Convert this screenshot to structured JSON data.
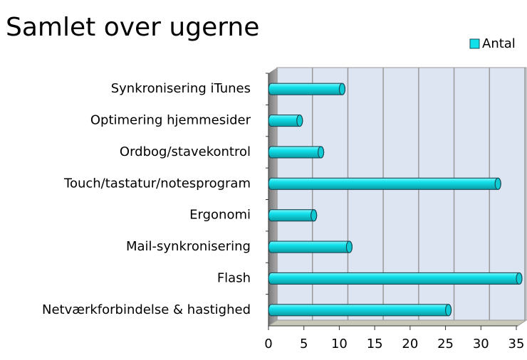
{
  "chart_data": {
    "type": "bar",
    "orientation": "horizontal",
    "title": "Samlet over ugerne",
    "categories": [
      "Synkronisering iTunes",
      "Optimering hjemmesider",
      "Ordbog/stavekontrol",
      "Touch/tastatur/notesprogram",
      "Ergonomi",
      "Mail-synkronisering",
      "Flash",
      "Netværkforbindelse & hastighed"
    ],
    "series": [
      {
        "name": "Antal",
        "color": "#10e0ea",
        "values": [
          10,
          4,
          7,
          32,
          6,
          11,
          35,
          25
        ]
      }
    ],
    "xlim": [
      0,
      35
    ],
    "xticks": [
      0,
      5,
      10,
      15,
      20,
      25,
      30,
      35
    ],
    "grid": true,
    "legend": "top-right"
  }
}
